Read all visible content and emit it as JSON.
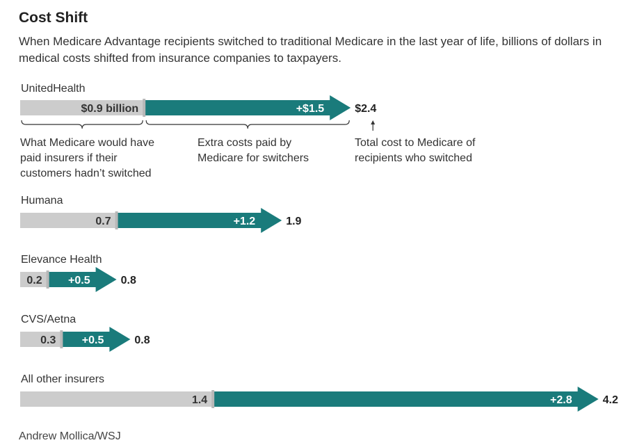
{
  "header": {
    "title": "Cost Shift",
    "subtitle": "When Medicare Advantage recipients switched to traditional Medicare in the last year of life, billions of dollars in medical costs shifted from insurance companies to taxpayers."
  },
  "annotations": {
    "base_note": [
      "What Medicare would have",
      "paid insurers if their",
      "customers hadn’t switched"
    ],
    "extra_note": [
      "Extra costs paid by",
      "Medicare for switchers"
    ],
    "total_note": [
      "Total cost to Medicare of",
      "recipients who switched"
    ]
  },
  "credit": "Andrew Mollica/WSJ",
  "colors": {
    "base": "#cccccc",
    "extra": "#1a7b7b",
    "divider": "#b8b8b8",
    "text": "#333333"
  },
  "chart_data": {
    "type": "bar",
    "title": "Cost Shift",
    "units": "billions of dollars",
    "stacked": true,
    "categories": [
      "UnitedHealth",
      "Humana",
      "Elevance Health",
      "CVS/Aetna",
      "All other insurers"
    ],
    "series": [
      {
        "name": "What Medicare would have paid insurers if their customers hadn’t switched",
        "values": [
          0.9,
          0.7,
          0.2,
          0.3,
          1.4
        ]
      },
      {
        "name": "Extra costs paid by Medicare for switchers",
        "values": [
          1.5,
          1.2,
          0.5,
          0.5,
          2.8
        ]
      }
    ],
    "totals": [
      2.4,
      1.9,
      0.8,
      0.8,
      4.2
    ],
    "base_labels": [
      "$0.9 billion",
      "0.7",
      "0.2",
      "0.3",
      "1.4"
    ],
    "extra_labels": [
      "+$1.5",
      "+1.2",
      "+0.5",
      "+0.5",
      "+2.8"
    ],
    "total_labels": [
      "$2.4",
      "1.9",
      "0.8",
      "0.8",
      "4.2"
    ],
    "xlim": [
      0,
      4.2
    ],
    "grid": false,
    "orientation": "horizontal"
  }
}
